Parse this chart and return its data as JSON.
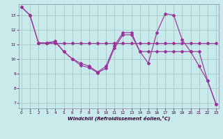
{
  "xlabel": "Windchill (Refroidissement éolien,°C)",
  "bg_color": "#c8eaea",
  "grid_color": "#aacccc",
  "line_color": "#993399",
  "spine_color": "#8888aa",
  "xlim": [
    -0.3,
    23.3
  ],
  "ylim": [
    6.6,
    13.75
  ],
  "xticks": [
    0,
    1,
    2,
    3,
    4,
    5,
    6,
    7,
    8,
    9,
    10,
    11,
    12,
    13,
    14,
    15,
    16,
    17,
    18,
    19,
    20,
    21,
    22,
    23
  ],
  "yticks": [
    7,
    8,
    9,
    10,
    11,
    12,
    13
  ],
  "line1_x": [
    0,
    1,
    2,
    3,
    4,
    5,
    6,
    7,
    8,
    9,
    10,
    11,
    12,
    13,
    14,
    15,
    16,
    17,
    18,
    19,
    20,
    21,
    22,
    23
  ],
  "line1_y": [
    13.55,
    13.0,
    11.1,
    11.1,
    11.2,
    10.5,
    10.0,
    9.7,
    9.5,
    9.1,
    9.5,
    10.9,
    11.8,
    11.8,
    10.5,
    9.7,
    11.8,
    13.1,
    13.0,
    11.3,
    10.5,
    9.5,
    8.5,
    6.9
  ],
  "line2_x": [
    2,
    3,
    4,
    5,
    6,
    7,
    8,
    9,
    10,
    11,
    12,
    13,
    14,
    15,
    16,
    17,
    18,
    19,
    20,
    21,
    22,
    23
  ],
  "line2_y": [
    11.1,
    11.1,
    11.1,
    11.1,
    11.1,
    11.1,
    11.1,
    11.1,
    11.1,
    11.1,
    11.1,
    11.1,
    11.1,
    11.1,
    11.1,
    11.1,
    11.1,
    11.1,
    11.1,
    11.1,
    11.1,
    11.1
  ],
  "line3_x": [
    0,
    1,
    2,
    3,
    4,
    5,
    6,
    7,
    8,
    9,
    10,
    11,
    12,
    13,
    14,
    15,
    16,
    17,
    18,
    19,
    20,
    21,
    22,
    23
  ],
  "line3_y": [
    13.55,
    13.0,
    11.1,
    11.1,
    11.15,
    10.5,
    10.0,
    9.55,
    9.4,
    9.05,
    9.35,
    10.75,
    11.65,
    11.65,
    10.5,
    10.5,
    10.5,
    10.5,
    10.5,
    10.5,
    10.5,
    10.5,
    8.5,
    6.9
  ]
}
